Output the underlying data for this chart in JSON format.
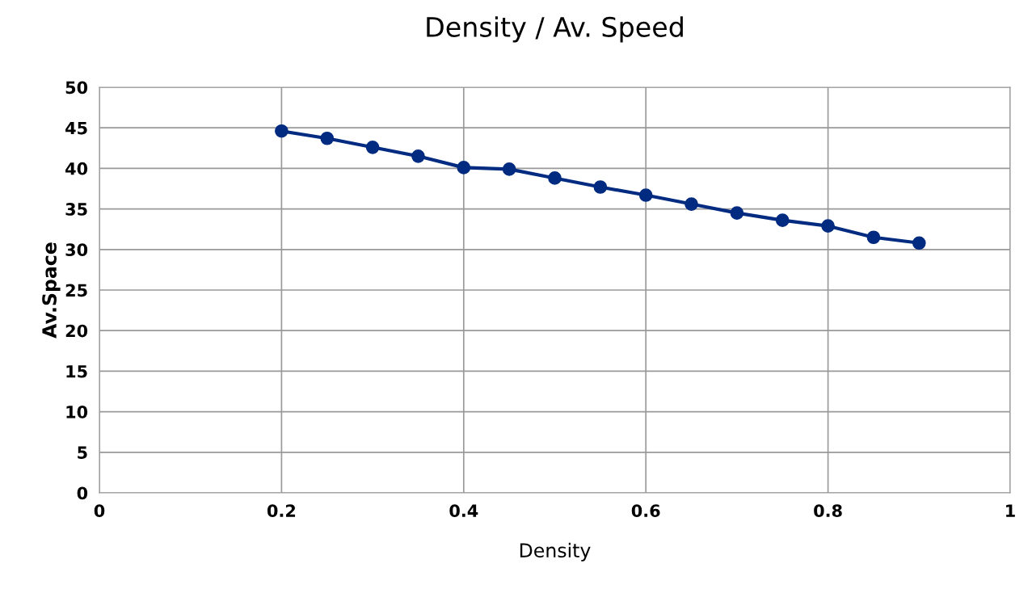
{
  "chart_data": {
    "type": "line",
    "title": "Density / Av. Speed",
    "xlabel": "Density",
    "ylabel": "Av.Space",
    "x": [
      0.2,
      0.25,
      0.3,
      0.35,
      0.4,
      0.45,
      0.5,
      0.55,
      0.6,
      0.65,
      0.7,
      0.75,
      0.8,
      0.85,
      0.9
    ],
    "series": [
      {
        "color": "#002b80",
        "values": [
          44.6,
          43.7,
          42.6,
          41.5,
          40.1,
          39.9,
          38.8,
          37.7,
          36.7,
          35.6,
          34.5,
          33.6,
          32.9,
          31.5,
          30.8
        ]
      }
    ],
    "xlim": [
      0,
      1
    ],
    "xticks": [
      0,
      0.2,
      0.4,
      0.6,
      0.8,
      1
    ],
    "ylim": [
      0,
      50
    ],
    "yticks": [
      0,
      5,
      10,
      15,
      20,
      25,
      30,
      35,
      40,
      45,
      50
    ],
    "grid": true,
    "marker": "circle",
    "line_style": "solid"
  }
}
